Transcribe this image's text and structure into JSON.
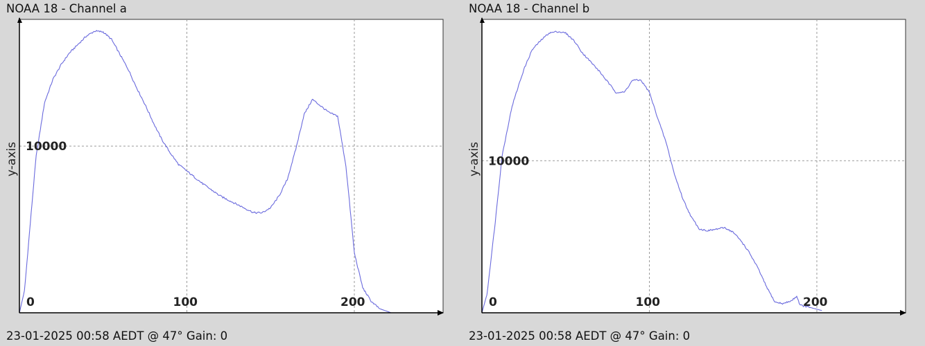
{
  "chart_data": [
    {
      "type": "line",
      "title": "NOAA 18 - Channel a",
      "footer": "23-01-2025 00:58 AEDT @ 47° Gain: 0",
      "ylabel": "y-axis",
      "xlabel": "",
      "xlim": [
        0,
        253
      ],
      "ylim": [
        0,
        17600
      ],
      "x_ticks": [
        0,
        100,
        200
      ],
      "y_ticks": [
        10000
      ],
      "grid": true,
      "line_color": "#6a6add",
      "series": [
        {
          "x": [
            0,
            3,
            6,
            10,
            15,
            20,
            25,
            30,
            35,
            40,
            45,
            50,
            55,
            60,
            65,
            70,
            75,
            80,
            85,
            90,
            95,
            100,
            110,
            120,
            130,
            140,
            145,
            150,
            155,
            160,
            165,
            170,
            175,
            180,
            185,
            190,
            195,
            200,
            205,
            210,
            215,
            222
          ],
          "y": [
            0,
            1300,
            4800,
            9400,
            12600,
            14000,
            14900,
            15600,
            16100,
            16600,
            16900,
            16850,
            16400,
            15500,
            14600,
            13500,
            12500,
            11400,
            10400,
            9600,
            8900,
            8500,
            7700,
            7000,
            6500,
            6000,
            6000,
            6300,
            7000,
            8000,
            9800,
            11900,
            12800,
            12400,
            12000,
            11800,
            8800,
            3600,
            1500,
            700,
            250,
            0
          ]
        }
      ]
    },
    {
      "type": "line",
      "title": "NOAA 18 - Channel b",
      "footer": "23-01-2025 00:58 AEDT @ 47° Gain: 0",
      "ylabel": "y-axis",
      "xlabel": "",
      "xlim": [
        0,
        253
      ],
      "ylim": [
        0,
        19300
      ],
      "x_ticks": [
        0,
        100,
        200
      ],
      "y_ticks": [
        10000
      ],
      "grid": true,
      "line_color": "#6a6add",
      "series": [
        {
          "x": [
            0,
            3,
            8,
            12,
            18,
            25,
            30,
            35,
            40,
            45,
            50,
            55,
            60,
            65,
            70,
            75,
            80,
            85,
            90,
            95,
            100,
            105,
            110,
            115,
            120,
            125,
            130,
            135,
            140,
            145,
            150,
            155,
            160,
            165,
            170,
            175,
            180,
            185,
            188,
            190,
            196,
            203
          ],
          "y": [
            0,
            1200,
            6000,
            10300,
            13600,
            16000,
            17300,
            17900,
            18400,
            18500,
            18400,
            17900,
            17100,
            16500,
            15900,
            15200,
            14500,
            14500,
            15300,
            15300,
            14500,
            12800,
            11200,
            9100,
            7500,
            6300,
            5500,
            5400,
            5500,
            5600,
            5300,
            4700,
            3900,
            2900,
            1700,
            700,
            600,
            800,
            1100,
            500,
            350,
            150
          ]
        }
      ]
    }
  ]
}
